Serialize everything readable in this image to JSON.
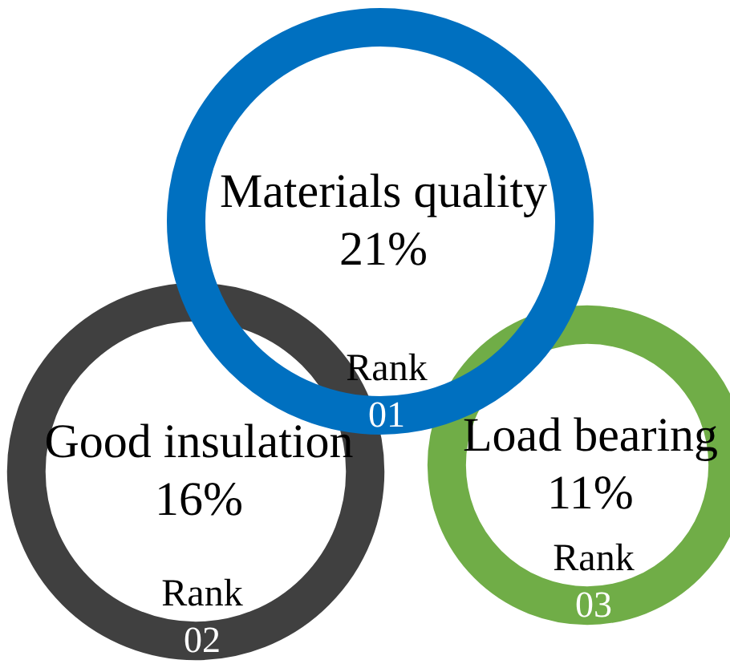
{
  "chart_data": {
    "type": "other",
    "categories": [
      "Materials quality",
      "Good insulation",
      "Load bearing"
    ],
    "values": [
      21,
      16,
      11
    ],
    "value_labels": [
      "21%",
      "16%",
      "11%"
    ],
    "colors": [
      "#0070c0",
      "#404040",
      "#70ad47"
    ],
    "annotations": [
      "Rank 01",
      "Rank 02",
      "Rank 03"
    ]
  }
}
